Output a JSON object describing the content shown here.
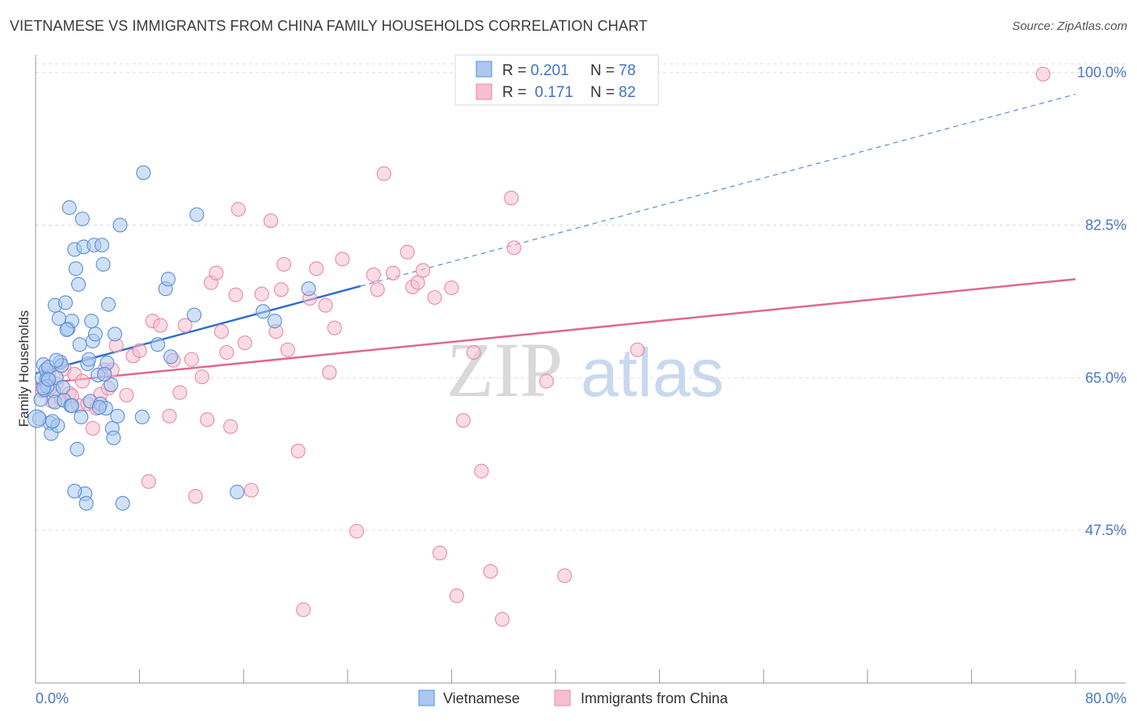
{
  "header": {
    "title": "VIETNAMESE VS IMMIGRANTS FROM CHINA FAMILY HOUSEHOLDS CORRELATION CHART",
    "source": "Source: ZipAtlas.com"
  },
  "colors": {
    "blue_fill": "#a9c8f0",
    "blue_stroke": "#5b8fd6",
    "blue_line": "#2e6fcf",
    "pink_fill": "#f6bfd0",
    "pink_stroke": "#e88aa8",
    "pink_line": "#e06890",
    "tick_text": "#4a78c2",
    "grid": "#dddddd"
  },
  "chart_data": {
    "type": "scatter",
    "title": "VIETNAMESE VS IMMIGRANTS FROM CHINA FAMILY HOUSEHOLDS CORRELATION CHART",
    "xlabel": "",
    "ylabel": "Family Households",
    "xlim": [
      0,
      80
    ],
    "ylim": [
      30,
      102
    ],
    "x_tick_labels": [
      "0.0%",
      "80.0%"
    ],
    "y_ticks": [
      47.5,
      65.0,
      82.5,
      100.0
    ],
    "y_tick_labels": [
      "47.5%",
      "65.0%",
      "82.5%",
      "100.0%"
    ],
    "grid": true,
    "legend": {
      "position": "top-center",
      "entries": [
        {
          "r_label": "R =",
          "r_value": "0.201",
          "n_label": "N =",
          "n_value": "78"
        },
        {
          "r_label": "R =",
          "r_value": " 0.171",
          "n_label": "N =",
          "n_value": "82"
        }
      ]
    },
    "bottom_legend": [
      "Vietnamese",
      "Immigrants from China"
    ],
    "watermark": "ZIPatlas",
    "series": [
      {
        "name": "Vietnamese",
        "color": "blue",
        "trend": {
          "x0": 0,
          "y0": 65.5,
          "x1": 25,
          "y1": 75.5,
          "dash_to_x": 80,
          "dash_to_y": 97.5
        },
        "points": [
          [
            0.3,
            60.3
          ],
          [
            0.4,
            62.5
          ],
          [
            0.5,
            65.0
          ],
          [
            0.6,
            66.5
          ],
          [
            0.7,
            63.6
          ],
          [
            0.8,
            65.9
          ],
          [
            0.9,
            64.9
          ],
          [
            1.0,
            66.2
          ],
          [
            1.1,
            59.8
          ],
          [
            1.2,
            58.6
          ],
          [
            1.4,
            63.5
          ],
          [
            1.5,
            62.2
          ],
          [
            1.5,
            73.3
          ],
          [
            1.6,
            65.0
          ],
          [
            1.7,
            59.5
          ],
          [
            1.8,
            71.8
          ],
          [
            1.9,
            66.8
          ],
          [
            2.0,
            66.4
          ],
          [
            2.2,
            62.4
          ],
          [
            2.3,
            73.6
          ],
          [
            2.5,
            70.6
          ],
          [
            2.6,
            84.5
          ],
          [
            2.7,
            61.8
          ],
          [
            2.8,
            71.5
          ],
          [
            3.0,
            79.7
          ],
          [
            3.1,
            77.5
          ],
          [
            3.2,
            56.8
          ],
          [
            3.3,
            75.7
          ],
          [
            3.4,
            68.8
          ],
          [
            3.5,
            60.5
          ],
          [
            3.6,
            83.2
          ],
          [
            3.7,
            80.0
          ],
          [
            3.8,
            51.7
          ],
          [
            4.0,
            66.6
          ],
          [
            4.1,
            67.1
          ],
          [
            4.2,
            62.3
          ],
          [
            4.3,
            71.5
          ],
          [
            4.4,
            69.2
          ],
          [
            4.5,
            80.2
          ],
          [
            4.6,
            70.0
          ],
          [
            4.8,
            65.3
          ],
          [
            5.0,
            62.0
          ],
          [
            5.1,
            80.2
          ],
          [
            5.2,
            78.0
          ],
          [
            5.4,
            61.5
          ],
          [
            5.5,
            66.7
          ],
          [
            5.6,
            73.4
          ],
          [
            5.8,
            64.2
          ],
          [
            5.9,
            59.2
          ],
          [
            6.0,
            58.1
          ],
          [
            6.1,
            70.0
          ],
          [
            6.3,
            60.6
          ],
          [
            6.5,
            82.5
          ],
          [
            6.7,
            50.6
          ],
          [
            8.2,
            60.5
          ],
          [
            8.3,
            88.5
          ],
          [
            9.4,
            68.8
          ],
          [
            10.0,
            75.2
          ],
          [
            10.2,
            76.3
          ],
          [
            10.4,
            67.4
          ],
          [
            12.2,
            72.2
          ],
          [
            12.4,
            83.7
          ],
          [
            15.5,
            51.9
          ],
          [
            17.5,
            72.6
          ],
          [
            18.4,
            71.5
          ],
          [
            21.0,
            75.2
          ],
          [
            2.1,
            63.9
          ],
          [
            1.3,
            60.0
          ],
          [
            0.9,
            64.0
          ],
          [
            3.9,
            50.6
          ],
          [
            4.9,
            61.6
          ],
          [
            2.4,
            70.5
          ],
          [
            1.6,
            67.0
          ],
          [
            3.0,
            52.0
          ],
          [
            5.3,
            65.4
          ],
          [
            0.6,
            63.8
          ],
          [
            1.0,
            64.8
          ],
          [
            2.8,
            61.8
          ]
        ]
      },
      {
        "name": "Immigrants from China",
        "color": "pink",
        "trend": {
          "x0": 0,
          "y0": 64.3,
          "x1": 80,
          "y1": 76.3
        },
        "points": [
          [
            0.5,
            63.5
          ],
          [
            0.8,
            64.8
          ],
          [
            1.0,
            65.5
          ],
          [
            1.3,
            62.3
          ],
          [
            1.6,
            64.3
          ],
          [
            2.0,
            62.5
          ],
          [
            2.2,
            66.0
          ],
          [
            2.6,
            63.2
          ],
          [
            3.0,
            65.4
          ],
          [
            3.3,
            61.8
          ],
          [
            3.6,
            64.6
          ],
          [
            4.0,
            62.0
          ],
          [
            4.4,
            59.2
          ],
          [
            4.7,
            61.5
          ],
          [
            5.0,
            63.1
          ],
          [
            5.3,
            65.9
          ],
          [
            5.6,
            63.8
          ],
          [
            5.9,
            65.9
          ],
          [
            6.2,
            68.7
          ],
          [
            7.0,
            63.0
          ],
          [
            7.5,
            67.5
          ],
          [
            8.0,
            68.1
          ],
          [
            8.7,
            53.1
          ],
          [
            9.0,
            71.5
          ],
          [
            9.6,
            71.0
          ],
          [
            10.3,
            60.6
          ],
          [
            10.6,
            67.0
          ],
          [
            11.1,
            63.3
          ],
          [
            11.5,
            71.0
          ],
          [
            12.0,
            67.1
          ],
          [
            12.3,
            51.4
          ],
          [
            12.8,
            65.1
          ],
          [
            13.2,
            60.2
          ],
          [
            13.5,
            75.9
          ],
          [
            13.9,
            77.0
          ],
          [
            14.3,
            70.3
          ],
          [
            14.7,
            67.9
          ],
          [
            15.0,
            59.4
          ],
          [
            15.4,
            74.5
          ],
          [
            15.6,
            84.3
          ],
          [
            16.1,
            69.0
          ],
          [
            16.6,
            52.1
          ],
          [
            17.4,
            74.6
          ],
          [
            18.1,
            83.0
          ],
          [
            18.5,
            70.3
          ],
          [
            18.9,
            75.1
          ],
          [
            19.1,
            78.0
          ],
          [
            19.4,
            68.2
          ],
          [
            20.2,
            56.6
          ],
          [
            20.6,
            38.4
          ],
          [
            21.1,
            74.1
          ],
          [
            21.6,
            77.5
          ],
          [
            22.3,
            73.3
          ],
          [
            22.6,
            65.6
          ],
          [
            23.0,
            70.7
          ],
          [
            23.6,
            78.6
          ],
          [
            24.7,
            47.4
          ],
          [
            26.0,
            76.8
          ],
          [
            26.3,
            75.1
          ],
          [
            26.8,
            88.4
          ],
          [
            27.5,
            77.0
          ],
          [
            28.6,
            79.4
          ],
          [
            29.0,
            75.4
          ],
          [
            29.4,
            75.9
          ],
          [
            29.8,
            77.3
          ],
          [
            30.7,
            74.2
          ],
          [
            31.1,
            44.9
          ],
          [
            32.0,
            75.3
          ],
          [
            32.4,
            40.0
          ],
          [
            32.9,
            60.1
          ],
          [
            33.7,
            67.9
          ],
          [
            34.3,
            54.3
          ],
          [
            35.0,
            42.8
          ],
          [
            35.9,
            37.3
          ],
          [
            36.6,
            85.6
          ],
          [
            36.8,
            79.9
          ],
          [
            39.3,
            64.6
          ],
          [
            40.7,
            42.3
          ],
          [
            46.3,
            68.2
          ],
          [
            77.5,
            99.8
          ],
          [
            1.2,
            63.9
          ],
          [
            2.8,
            62.9
          ]
        ]
      }
    ]
  }
}
